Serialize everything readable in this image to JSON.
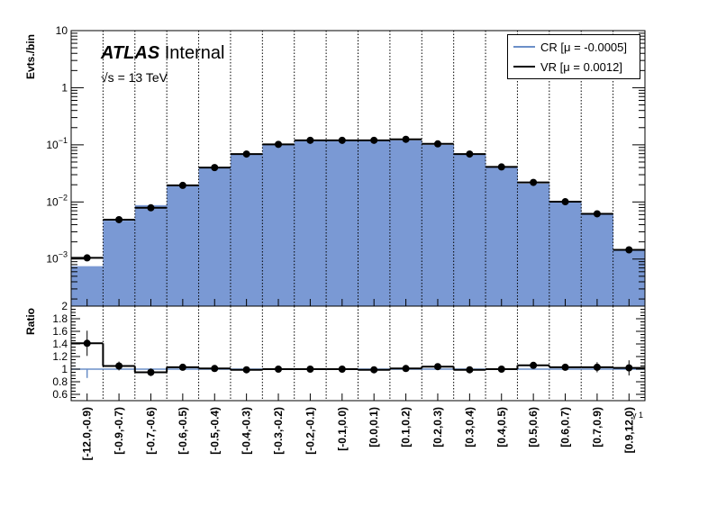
{
  "header": {
    "atlas_bold": "ATLAS",
    "atlas_rest": "Internal",
    "energy": "√s = 13 TeV"
  },
  "axes": {
    "top_ylabel": "Evts./bin",
    "bottom_ylabel": "Ratio",
    "x_variable": "γ 1"
  },
  "legend": {
    "cr_label": "CR [μ = -0.0005]",
    "vr_label": "VR [μ = 0.0012]"
  },
  "colors": {
    "cr_fill": "#7a99d4",
    "cr_line": "#6b8fc8",
    "vr_line": "#000000",
    "grid": "#000000"
  },
  "chart_data": [
    {
      "type": "bar",
      "title": "",
      "ylabel": "Evts./bin",
      "yscale": "log",
      "ylim": [
        0.00015,
        10
      ],
      "grid": "vertical dotted at bin edges",
      "legend_position": "top-right",
      "categories": [
        "[-12.0,-0.9)",
        "[-0.9,-0.7)",
        "[-0.7,-0.6)",
        "[-0.6,-0.5)",
        "[-0.5,-0.4)",
        "[-0.4,-0.3)",
        "[-0.3,-0.2)",
        "[-0.2,-0.1)",
        "[-0.1,0.0)",
        "[0.0,0.1)",
        "[0.1,0.2)",
        "[0.2,0.3)",
        "[0.3,0.4)",
        "[0.4,0.5)",
        "[0.5,0.6)",
        "[0.6,0.7)",
        "[0.7,0.9)",
        "[0.9,12.0)"
      ],
      "yticks": [
        {
          "v": 0.001,
          "base": "10",
          "exp": "−3"
        },
        {
          "v": 0.01,
          "base": "10",
          "exp": "−2"
        },
        {
          "v": 0.1,
          "base": "10",
          "exp": "−1"
        },
        {
          "v": 1,
          "base": "1",
          "exp": ""
        },
        {
          "v": 10,
          "base": "10",
          "exp": ""
        }
      ],
      "series": [
        {
          "name": "CR [μ = -0.0005]",
          "style": "filled histogram",
          "values": [
            0.00075,
            0.0047,
            0.0088,
            0.019,
            0.04,
            0.07,
            0.1,
            0.12,
            0.12,
            0.122,
            0.12,
            0.1,
            0.07,
            0.04,
            0.021,
            0.0098,
            0.006,
            0.0014
          ]
        },
        {
          "name": "VR [μ = 0.0012]",
          "style": "line histogram with points",
          "values": [
            0.00105,
            0.0049,
            0.0079,
            0.0195,
            0.04,
            0.069,
            0.102,
            0.12,
            0.12,
            0.12,
            0.125,
            0.104,
            0.069,
            0.041,
            0.022,
            0.0101,
            0.0062,
            0.00145
          ],
          "errors": [
            8e-05,
            0.0002,
            0.0003,
            0.0005,
            0.0008,
            0.001,
            0.0012,
            0.0014,
            0.0014,
            0.0014,
            0.0014,
            0.0012,
            0.001,
            0.0008,
            0.0005,
            0.0003,
            0.0004,
            0.0001
          ]
        }
      ]
    },
    {
      "type": "line",
      "title": "",
      "ylabel": "Ratio",
      "ylim": [
        0.5,
        2
      ],
      "yticks": [
        "0.6",
        "0.8",
        "1",
        "1.2",
        "1.4",
        "1.6",
        "1.8",
        "2"
      ],
      "grid": "vertical dotted at bin edges",
      "categories": [
        "[-12.0,-0.9)",
        "[-0.9,-0.7)",
        "[-0.7,-0.6)",
        "[-0.6,-0.5)",
        "[-0.5,-0.4)",
        "[-0.4,-0.3)",
        "[-0.3,-0.2)",
        "[-0.2,-0.1)",
        "[-0.1,0.0)",
        "[0.0,0.1)",
        "[0.1,0.2)",
        "[0.2,0.3)",
        "[0.3,0.4)",
        "[0.4,0.5)",
        "[0.5,0.6)",
        "[0.6,0.7)",
        "[0.7,0.9)",
        "[0.9,12.0)"
      ],
      "series": [
        {
          "name": "",
          "style": "reference line",
          "values": [
            1,
            1,
            1,
            1,
            1,
            1,
            1,
            1,
            1,
            1,
            1,
            1,
            1,
            1,
            1,
            1,
            1,
            1
          ]
        },
        {
          "name": "",
          "style": "step with points",
          "values": [
            1.41,
            1.05,
            0.95,
            1.03,
            1.01,
            0.99,
            1.0,
            1.0,
            1.0,
            0.99,
            1.01,
            1.04,
            0.99,
            1.0,
            1.06,
            1.03,
            1.03,
            1.02
          ],
          "errors": [
            0.2,
            0.07,
            0.06,
            0.04,
            0.04,
            0.03,
            0.03,
            0.03,
            0.03,
            0.03,
            0.03,
            0.03,
            0.03,
            0.04,
            0.05,
            0.05,
            0.08,
            0.12
          ]
        }
      ]
    }
  ]
}
